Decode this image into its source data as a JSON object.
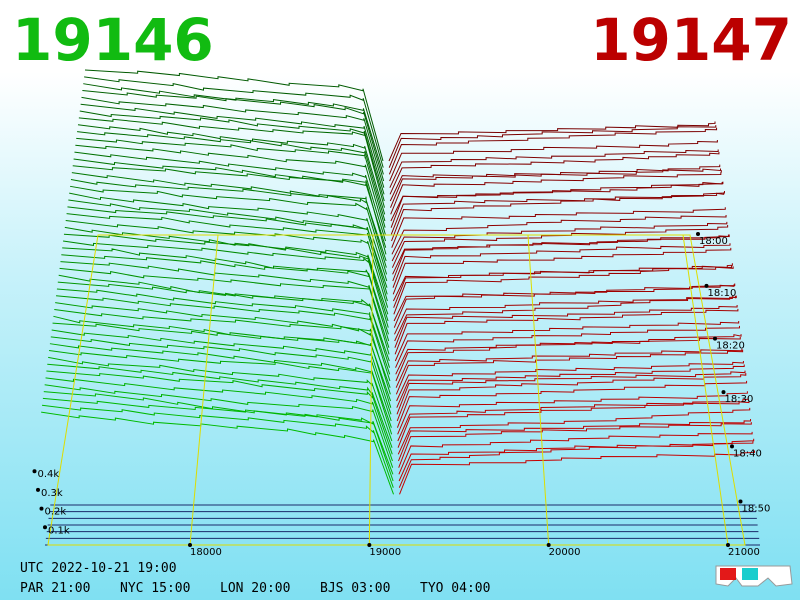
{
  "header": {
    "bid": "19146",
    "ask": "19147"
  },
  "axes": {
    "price_ticks": [
      18000,
      19000,
      20000,
      21000
    ],
    "volume_ticks": [
      {
        "value": 100,
        "label": "0.1k"
      },
      {
        "value": 200,
        "label": "0.2k"
      },
      {
        "value": 300,
        "label": "0.3k"
      },
      {
        "value": 400,
        "label": "0.4k"
      }
    ],
    "time_ticks": [
      "18:00",
      "18:10",
      "18:20",
      "18:30",
      "18:40",
      "18:50"
    ]
  },
  "footer": {
    "utc": "UTC 2022-10-21 19:00",
    "zones": [
      "PAR 21:00",
      "NYC 15:00",
      "LON 20:00",
      "BJS 03:00",
      "TYO 04:00"
    ]
  }
}
